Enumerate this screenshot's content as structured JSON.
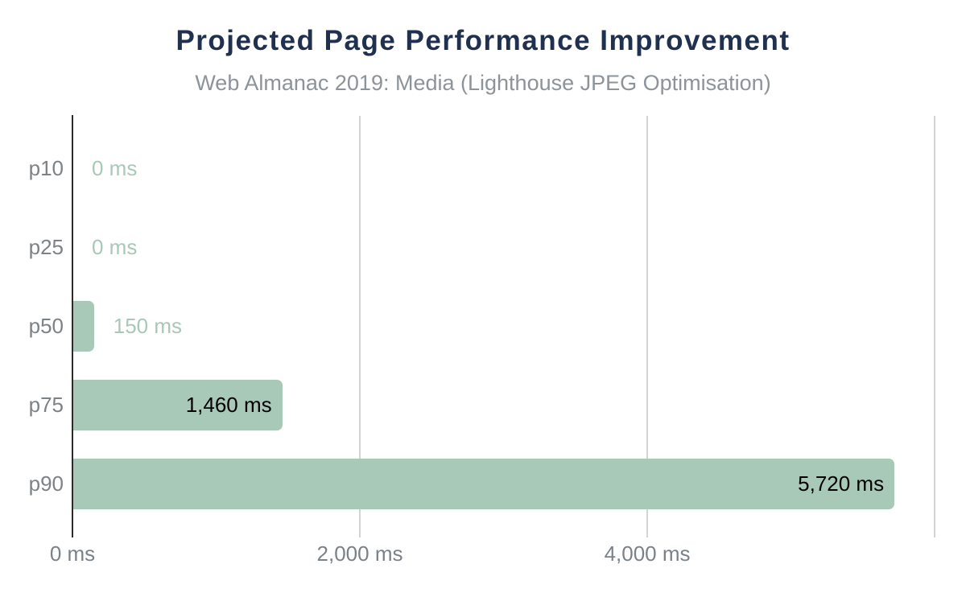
{
  "chart_data": {
    "type": "bar",
    "orientation": "horizontal",
    "title": "Projected Page Performance Improvement",
    "subtitle": "Web Almanac 2019: Media (Lighthouse JPEG Optimisation)",
    "categories": [
      "p10",
      "p25",
      "p50",
      "p75",
      "p90"
    ],
    "values": [
      0,
      0,
      150,
      1460,
      5720
    ],
    "value_labels": [
      "0 ms",
      "0 ms",
      "150 ms",
      "1,460 ms",
      "5,720 ms"
    ],
    "value_label_placement": [
      "outside",
      "outside",
      "outside",
      "inside",
      "inside"
    ],
    "unit": "ms",
    "xlabel": "",
    "ylabel": "",
    "xlim": [
      0,
      6050
    ],
    "x_ticks": [
      {
        "value": 0,
        "label": "0 ms"
      },
      {
        "value": 2000,
        "label": "2,000 ms"
      },
      {
        "value": 4000,
        "label": "4,000 ms"
      },
      {
        "value": 6000,
        "label": ""
      }
    ],
    "grid": true,
    "legend": false,
    "colors": {
      "bar": "#a8c8b8",
      "value_label_outside": "#a8c8b8",
      "value_label_inside": "#000000",
      "title": "#20314f",
      "subtitle": "#8c9399",
      "category_label": "#7d8287",
      "tick_label": "#7b8188",
      "axis_line": "#2b2b2b",
      "gridline": "#d4d4d4",
      "background": "#ffffff"
    }
  }
}
